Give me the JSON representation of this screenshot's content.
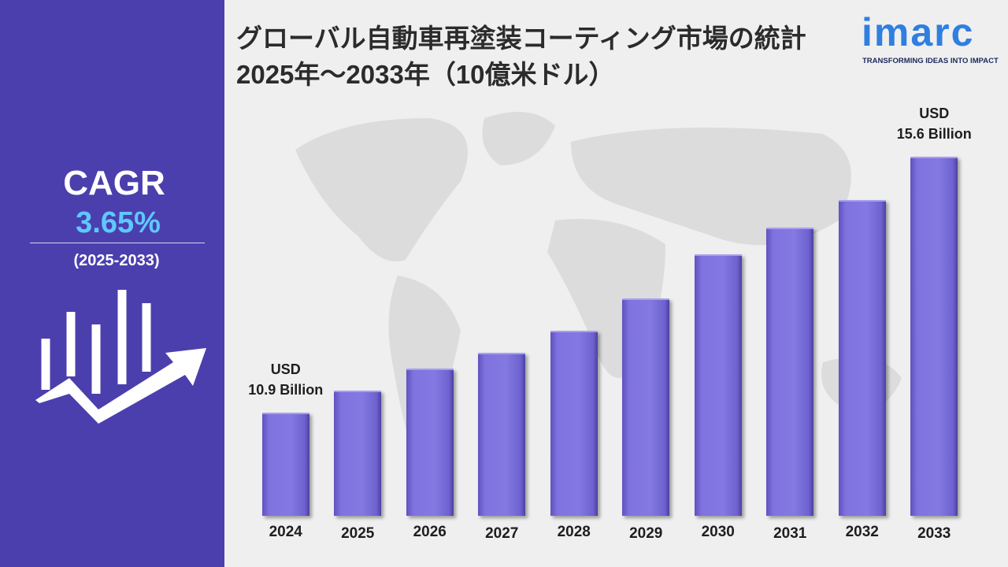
{
  "logo": {
    "name": "imarc",
    "tagline": "TRANSFORMING IDEAS INTO IMPACT"
  },
  "cagr": {
    "label": "CAGR",
    "value": "3.65%",
    "period": "(2025-2033)"
  },
  "chart_data": {
    "type": "bar",
    "title": "グローバル自動車再塗装コーティング市場の統計 2025年～2033年（10億米ドル）",
    "categories": [
      "2024",
      "2025",
      "2026",
      "2027",
      "2028",
      "2029",
      "2030",
      "2031",
      "2032",
      "2033"
    ],
    "values": [
      10.9,
      11.3,
      11.7,
      12.0,
      12.4,
      13.0,
      13.8,
      14.3,
      14.8,
      15.6
    ],
    "value_labels": [
      "USD\n10.9 Billion",
      null,
      null,
      null,
      null,
      null,
      null,
      null,
      null,
      "USD\n15.6 Billion"
    ],
    "color": "#7b6fd9"
  }
}
